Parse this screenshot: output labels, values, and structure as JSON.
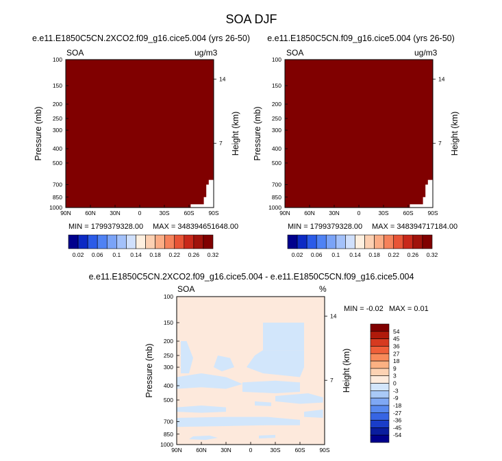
{
  "page_title": "SOA DJF",
  "chart_data": [
    {
      "type": "heatmap",
      "title": "e.e11.E1850C5CN.2XCO2.f09_g16.cice5.004 (yrs 26-50)",
      "left_label": "SOA",
      "right_label": "ug/m3",
      "ylabel": "Pressure (mb)",
      "ylabel_right": "Height (km)",
      "x_ticks": [
        "90N",
        "60N",
        "30N",
        "0",
        "30S",
        "60S",
        "90S"
      ],
      "x_range": [
        90,
        -90
      ],
      "y_ticks": [
        100,
        150,
        200,
        250,
        300,
        400,
        500,
        700,
        850,
        1000
      ],
      "y_range": [
        100,
        1000
      ],
      "y_scale": "log",
      "height_ticks": [
        14,
        7
      ],
      "fill_color": "#800000",
      "min_label": "MIN = 1799379328.00",
      "max_label": "MAX = 348394651648.00",
      "colorbar": {
        "labels": [
          "0.02",
          "0.06",
          "0.1",
          "0.14",
          "0.18",
          "0.22",
          "0.26",
          "0.32"
        ],
        "colors": [
          "#00008c",
          "#0c2ac4",
          "#2b5be8",
          "#4f82f4",
          "#7aa3f7",
          "#a3c1fa",
          "#d0e0fc",
          "#fef0e0",
          "#fcd0b2",
          "#fbad86",
          "#f5825b",
          "#e85436",
          "#c8281a",
          "#a0120b",
          "#800000"
        ]
      }
    },
    {
      "type": "heatmap",
      "title": "e.e11.E1850C5CN.f09_g16.cice5.004 (yrs 26-50)",
      "left_label": "SOA",
      "right_label": "ug/m3",
      "ylabel": "Pressure (mb)",
      "ylabel_right": "Height (km)",
      "x_ticks": [
        "90N",
        "60N",
        "30N",
        "0",
        "30S",
        "60S",
        "90S"
      ],
      "x_range": [
        90,
        -90
      ],
      "y_ticks": [
        100,
        150,
        200,
        250,
        300,
        400,
        500,
        700,
        850,
        1000
      ],
      "y_range": [
        100,
        1000
      ],
      "y_scale": "log",
      "height_ticks": [
        14,
        7
      ],
      "fill_color": "#800000",
      "min_label": "MIN = 1799379328.00",
      "max_label": "MAX = 348394717184.00",
      "colorbar": {
        "labels": [
          "0.02",
          "0.06",
          "0.1",
          "0.14",
          "0.18",
          "0.22",
          "0.26",
          "0.32"
        ],
        "colors": [
          "#00008c",
          "#0c2ac4",
          "#2b5be8",
          "#4f82f4",
          "#7aa3f7",
          "#a3c1fa",
          "#d0e0fc",
          "#fef0e0",
          "#fcd0b2",
          "#fbad86",
          "#f5825b",
          "#e85436",
          "#c8281a",
          "#a0120b",
          "#800000"
        ]
      }
    },
    {
      "type": "heatmap",
      "title": "e.e11.E1850C5CN.2XCO2.f09_g16.cice5.004 - e.e11.E1850C5CN.f09_g16.cice5.004",
      "left_label": "SOA",
      "right_label": "%",
      "ylabel": "Pressure (mb)",
      "ylabel_right": "Height (km)",
      "x_ticks": [
        "90N",
        "60N",
        "30N",
        "0",
        "30S",
        "60S",
        "90S"
      ],
      "x_range": [
        90,
        -90
      ],
      "y_ticks": [
        100,
        150,
        200,
        250,
        300,
        400,
        500,
        700,
        850,
        1000
      ],
      "y_range": [
        100,
        1000
      ],
      "y_scale": "log",
      "height_ticks": [
        14,
        7
      ],
      "background_color": "#fde9dc",
      "negative_color": "#d2e6fb",
      "min_label": "MIN =  -0.02",
      "max_label": "MAX =   0.01",
      "colorbar": {
        "labels": [
          "54",
          "45",
          "36",
          "27",
          "18",
          "9",
          "3",
          "0",
          "-3",
          "-9",
          "-18",
          "-27",
          "-36",
          "-45",
          "-54"
        ],
        "colors": [
          "#800000",
          "#b01a0b",
          "#d63a20",
          "#ef5f39",
          "#f88a5a",
          "#fbb183",
          "#fcd2b3",
          "#fdebdd",
          "#d2e5fb",
          "#a9c9f7",
          "#7fa8f4",
          "#5889ef",
          "#3765e3",
          "#1a3dc8",
          "#0a1d9e",
          "#00008c"
        ]
      }
    }
  ]
}
